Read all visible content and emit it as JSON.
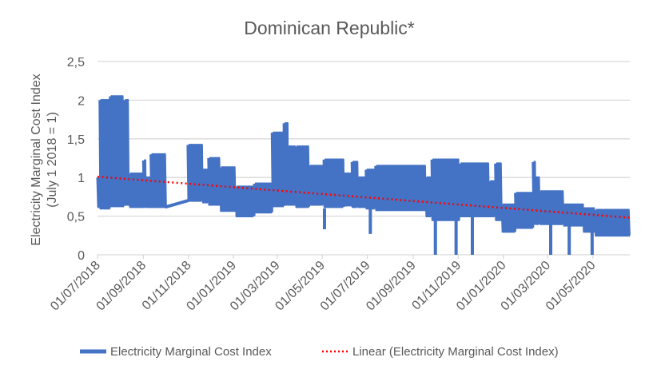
{
  "chart_data": {
    "type": "line",
    "title": "Dominican Republic*",
    "ylabel": "Electricity Marginal Cost Index",
    "ylabel_line2": "(July 1 2018 = 1)",
    "xlabel": "",
    "ylim": [
      0,
      2.5
    ],
    "xlim": [
      "2018-07-01",
      "2020-06-20"
    ],
    "y_ticks": [
      "0",
      "0,5",
      "1",
      "1,5",
      "2",
      "2,5"
    ],
    "y_tick_values": [
      0,
      0.5,
      1,
      1.5,
      2,
      2.5
    ],
    "x_ticks": [
      "01/07/2018",
      "01/09/2018",
      "01/11/2018",
      "01/01/2019",
      "01/03/2019",
      "01/05/2019",
      "01/07/2019",
      "01/09/2019",
      "01/11/2019",
      "01/01/2020",
      "01/03/2020",
      "01/05/2020"
    ],
    "x_tick_dates": [
      "2018-07-01",
      "2018-09-01",
      "2018-11-01",
      "2019-01-01",
      "2019-03-01",
      "2019-05-01",
      "2019-07-01",
      "2019-09-01",
      "2019-11-01",
      "2020-01-01",
      "2020-03-01",
      "2020-05-01"
    ],
    "grid": "horizontal",
    "legend_position": "bottom",
    "series": [
      {
        "name": "Electricity Marginal Cost Index",
        "color": "#4472C4",
        "segments_high_low": [
          [
            "2018-07-01",
            "2018-07-04",
            1.0,
            0.62
          ],
          [
            "2018-07-04",
            "2018-07-18",
            2.0,
            0.6
          ],
          [
            "2018-07-18",
            "2018-08-06",
            2.05,
            0.63
          ],
          [
            "2018-08-06",
            "2018-08-13",
            2.0,
            0.65
          ],
          [
            "2018-08-13",
            "2018-09-01",
            1.05,
            0.62
          ],
          [
            "2018-09-01",
            "2018-09-04",
            1.22,
            0.62
          ],
          [
            "2018-09-04",
            "2018-09-11",
            1.0,
            0.62
          ],
          [
            "2018-09-11",
            "2018-10-02",
            1.3,
            0.62
          ],
          [
            "2018-10-31",
            "2018-11-20",
            1.42,
            0.7
          ],
          [
            "2018-11-20",
            "2018-11-28",
            1.1,
            0.68
          ],
          [
            "2018-11-28",
            "2018-12-14",
            1.25,
            0.65
          ],
          [
            "2018-12-14",
            "2019-01-04",
            1.13,
            0.57
          ],
          [
            "2019-01-04",
            "2019-01-29",
            0.88,
            0.5
          ],
          [
            "2019-01-29",
            "2019-02-22",
            0.92,
            0.55
          ],
          [
            "2019-02-22",
            "2019-03-10",
            1.58,
            0.63
          ],
          [
            "2019-03-10",
            "2019-03-15",
            1.7,
            0.65
          ],
          [
            "2019-03-15",
            "2019-03-26",
            1.4,
            0.65
          ],
          [
            "2019-03-26",
            "2019-04-13",
            1.4,
            0.62
          ],
          [
            "2019-04-13",
            "2019-05-03",
            1.15,
            0.65
          ],
          [
            "2019-05-03",
            "2019-05-30",
            1.23,
            0.62
          ],
          [
            "2019-05-30",
            "2019-06-10",
            1.05,
            0.64
          ],
          [
            "2019-06-10",
            "2019-06-18",
            1.2,
            0.62
          ],
          [
            "2019-06-18",
            "2019-06-29",
            1.0,
            0.62
          ],
          [
            "2019-06-29",
            "2019-07-12",
            1.1,
            0.6
          ],
          [
            "2019-07-12",
            "2019-09-18",
            1.15,
            0.58
          ],
          [
            "2019-09-18",
            "2019-09-26",
            1.0,
            0.5
          ],
          [
            "2019-09-26",
            "2019-11-03",
            1.23,
            0.45
          ],
          [
            "2019-11-03",
            "2019-12-13",
            1.18,
            0.5
          ],
          [
            "2019-12-13",
            "2019-12-21",
            0.95,
            0.5
          ],
          [
            "2019-12-21",
            "2019-12-30",
            1.18,
            0.45
          ],
          [
            "2019-12-30",
            "2020-01-17",
            0.65,
            0.3
          ],
          [
            "2020-01-17",
            "2020-02-10",
            0.8,
            0.35
          ],
          [
            "2020-02-10",
            "2020-02-13",
            1.2,
            0.4
          ],
          [
            "2020-02-13",
            "2020-02-19",
            1.0,
            0.4
          ],
          [
            "2020-02-19",
            "2020-03-22",
            0.82,
            0.4
          ],
          [
            "2020-03-22",
            "2020-04-18",
            0.65,
            0.38
          ],
          [
            "2020-04-18",
            "2020-05-04",
            0.6,
            0.3
          ],
          [
            "2020-05-04",
            "2020-06-20",
            0.58,
            0.25
          ]
        ],
        "dips": [
          [
            "2019-05-04",
            0.33
          ],
          [
            "2019-07-05",
            0.27
          ],
          [
            "2019-10-01",
            0.0
          ],
          [
            "2019-10-29",
            0.0
          ],
          [
            "2019-11-20",
            0.0
          ],
          [
            "2020-03-05",
            0.0
          ],
          [
            "2020-03-30",
            0.0
          ],
          [
            "2020-04-30",
            0.0
          ]
        ]
      },
      {
        "name": "Linear (Electricity Marginal Cost Index)",
        "color": "#FF0000",
        "style": "dotted",
        "x": [
          "2018-07-01",
          "2020-06-20"
        ],
        "y": [
          1.01,
          0.48
        ]
      }
    ]
  }
}
